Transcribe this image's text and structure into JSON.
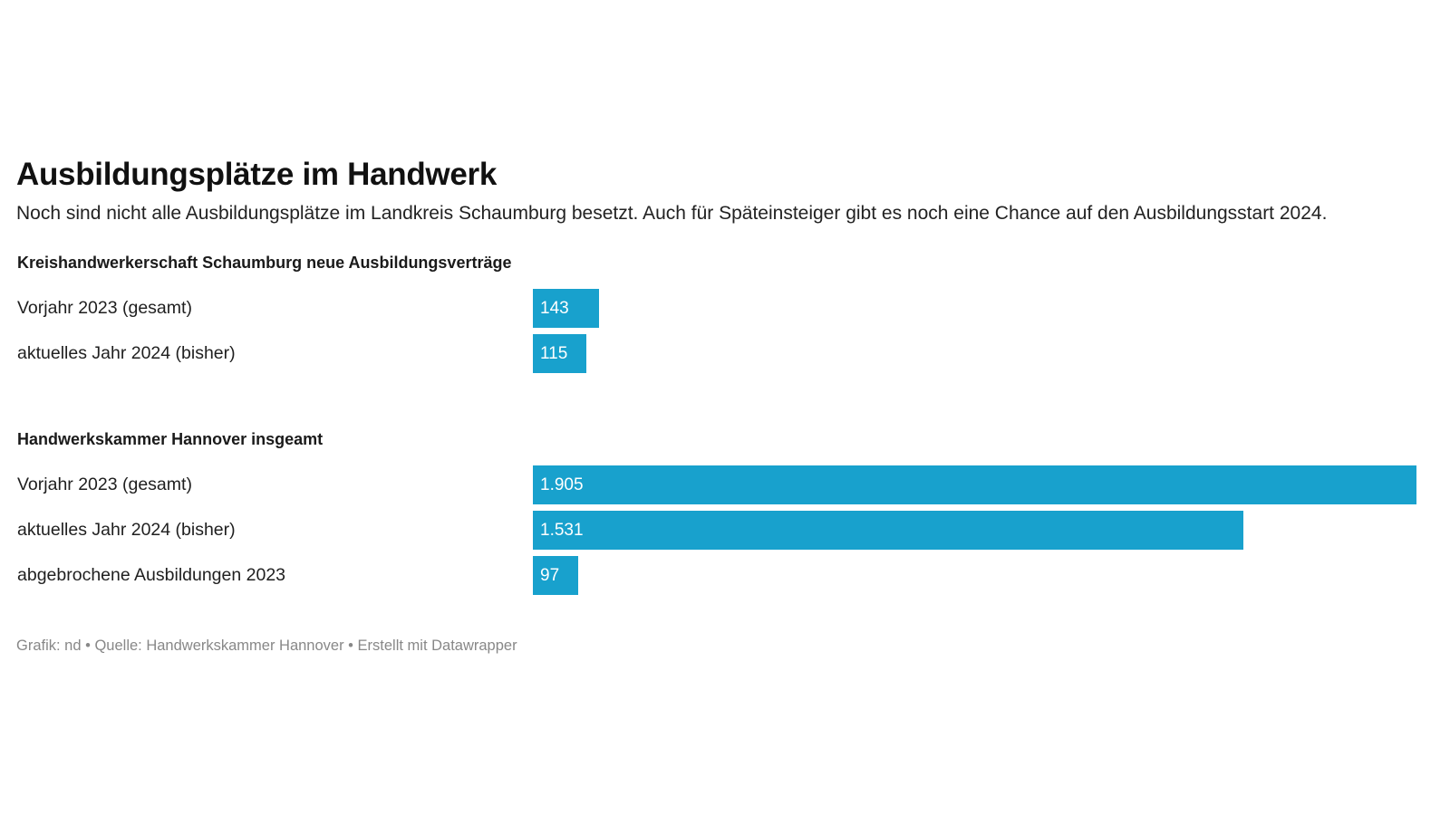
{
  "chart_data": {
    "type": "bar",
    "orientation": "horizontal",
    "title": "Ausbildungsplätze im Handwerk",
    "subtitle": "Noch sind nicht alle Ausbildungsplätze im Landkreis Schaumburg besetzt. Auch für Späteinsteiger gibt es noch eine Chance auf den Ausbildungsstart 2024.",
    "bar_color": "#18a1cd",
    "xlim": [
      0,
      1905
    ],
    "groups": [
      {
        "heading": "Kreishandwerkerschaft Schaumburg neue Ausbildungsverträge",
        "rows": [
          {
            "label": "Vorjahr 2023 (gesamt)",
            "value": 143,
            "value_label": "143"
          },
          {
            "label": "aktuelles Jahr 2024 (bisher)",
            "value": 115,
            "value_label": "115"
          }
        ]
      },
      {
        "heading": "Handwerkskammer Hannover insgeamt",
        "rows": [
          {
            "label": "Vorjahr 2023 (gesamt)",
            "value": 1905,
            "value_label": "1.905"
          },
          {
            "label": "aktuelles Jahr 2024 (bisher)",
            "value": 1531,
            "value_label": "1.531"
          },
          {
            "label": "abgebrochene Ausbildungen 2023",
            "value": 97,
            "value_label": "97"
          }
        ]
      }
    ],
    "footer": "Grafik: nd • Quelle: Handwerkskammer Hannover • Erstellt mit Datawrapper"
  }
}
